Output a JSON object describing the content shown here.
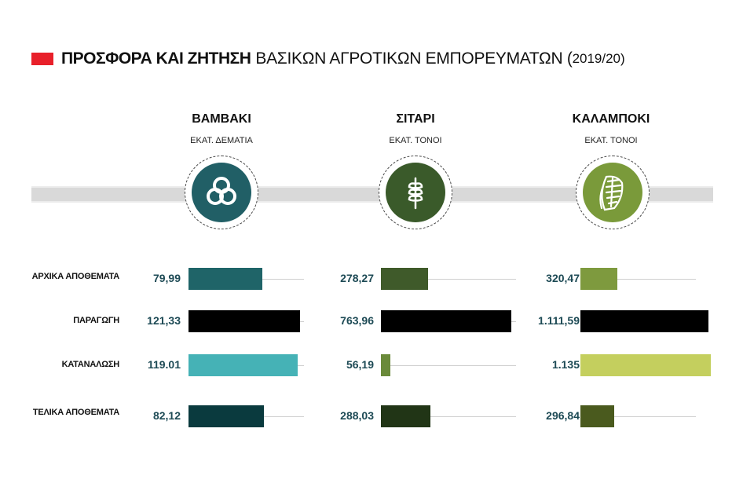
{
  "title": {
    "bold": "ΠΡΟΣΦΟΡΑ ΚΑΙ ΖΗΤΗΣΗ",
    "rest": "ΒΑΣΙΚΩΝ ΑΓΡΟΤΙΚΩΝ ΕΜΠΟΡΕΥΜΑΤΩΝ (",
    "years": "2019/20)",
    "marker_color": "#e8202a"
  },
  "columns": [
    {
      "name": "ΒΑΜΒΑΚΙ",
      "unit": "ΕΚΑΤ. ΔΕΜΑΤΙΑ",
      "icon": "cotton-icon",
      "icon_color": "#215f66"
    },
    {
      "name": "ΣΙΤΑΡΙ",
      "unit": "ΕΚΑΤ. ΤΟΝΟΙ",
      "icon": "wheat-icon",
      "icon_color": "#3a5a2a"
    },
    {
      "name": "ΚΑΛΑΜΠΟΚΙ",
      "unit": "ΕΚΑΤ. ΤΟΝΟΙ",
      "icon": "corn-icon",
      "icon_color": "#7a9a3a"
    }
  ],
  "rows": [
    "ΑΡΧΙΚΑ ΑΠΟΘΕΜΑΤΑ",
    "ΠΑΡΑΓΩΓΗ",
    "ΚΑΤΑΝΑΛΩΣΗ",
    "ΤΕΛΙΚΑ ΑΠΟΘΕΜΑΤΑ"
  ],
  "chart_data": {
    "type": "bar",
    "title": "ΠΡΟΣΦΟΡΑ ΚΑΙ ΖΗΤΗΣΗ ΒΑΣΙΚΩΝ ΑΓΡΟΤΙΚΩΝ ΕΜΠΟΡΕΥΜΑΤΩΝ (2019/20)",
    "categories": [
      "ΑΡΧΙΚΑ ΑΠΟΘΕΜΑΤΑ",
      "ΠΑΡΑΓΩΓΗ",
      "ΚΑΤΑΝΑΛΩΣΗ",
      "ΤΕΛΙΚΑ ΑΠΟΘΕΜΑΤΑ"
    ],
    "series": [
      {
        "name": "ΒΑΜΒΑΚΙ",
        "unit": "ΕΚΑΤ. ΔΕΜΑΤΙΑ",
        "values": [
          79.99,
          121.33,
          119.01,
          82.12
        ],
        "labels": [
          "79,99",
          "121,33",
          "119.01",
          "82,12"
        ],
        "colors": [
          "#1f6468",
          "#000000",
          "#45b2b6",
          "#0a3a3e"
        ]
      },
      {
        "name": "ΣΙΤΑΡΙ",
        "unit": "ΕΚΑΤ. ΤΟΝΟΙ",
        "values": [
          278.27,
          763.96,
          56.19,
          288.03
        ],
        "labels": [
          "278,27",
          "763,96",
          "56,19",
          "288,03"
        ],
        "colors": [
          "#3f5a2a",
          "#000000",
          "#6a8a3a",
          "#213516"
        ]
      },
      {
        "name": "ΚΑΛΑΜΠΟΚΙ",
        "unit": "ΕΚΑΤ. ΤΟΝΟΙ",
        "values": [
          320.47,
          1111.59,
          1135,
          296.84
        ],
        "labels": [
          "320,47",
          "1.111,59",
          "1.135",
          "296,84"
        ],
        "colors": [
          "#7e9a3e",
          "#000000",
          "#c4cf5e",
          "#4a5a1e"
        ]
      }
    ]
  }
}
